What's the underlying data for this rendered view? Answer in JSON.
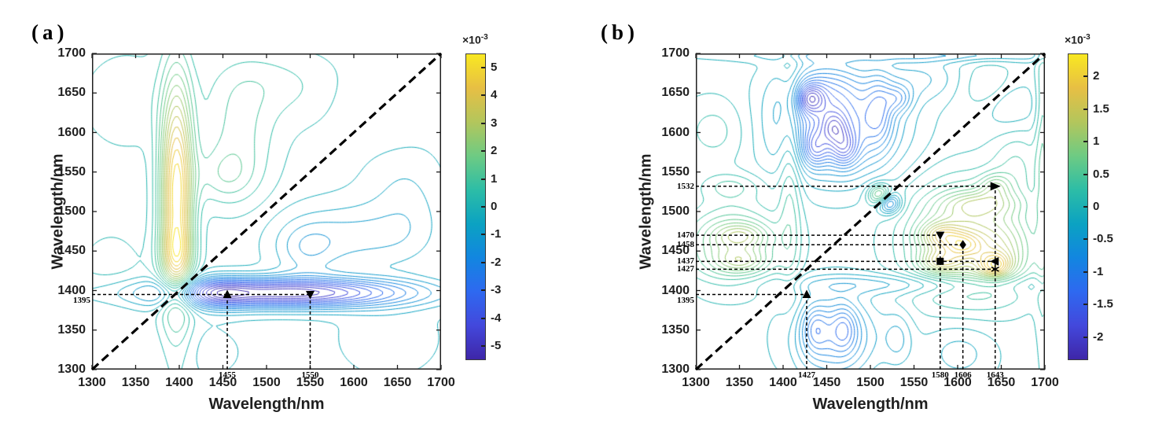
{
  "style": {
    "background": "#ffffff",
    "axis_color": "#1f1f1f",
    "annotation_color": "#000000",
    "parula_stops": [
      "#3e26a8",
      "#4348dc",
      "#2e69f0",
      "#1286e0",
      "#0ba2c2",
      "#2dbda6",
      "#6ecb83",
      "#b3c65c",
      "#e7bf44",
      "#f9e821"
    ]
  },
  "chart_data": [
    {
      "type": "contour",
      "panel_label": "(a)",
      "xlabel": "Wavelength/nm",
      "ylabel": "Wavelength/nm",
      "xlim": [
        1300,
        1700
      ],
      "ylim": [
        1300,
        1700
      ],
      "x_ticks": [
        "1300",
        "1350",
        "1400",
        "1450",
        "1500",
        "1550",
        "1600",
        "1650",
        "1700"
      ],
      "y_ticks": [
        "1300",
        "1350",
        "1400",
        "1450",
        "1500",
        "1550",
        "1600",
        "1650",
        "1700"
      ],
      "diagonal_line": true,
      "antisymmetric": true,
      "amplitude_unit": "1e-3",
      "colorbar": {
        "exponent_base": "×10",
        "exponent_power": "-3",
        "ticks": [
          "5",
          "4",
          "3",
          "2",
          "1",
          "0",
          "-1",
          "-2",
          "-3",
          "-4",
          "-5"
        ],
        "vrange": 5.5
      },
      "levels": {
        "offset": 0.2,
        "step": 0.4,
        "count": 14
      },
      "positive_regions": [
        {
          "x": 1395,
          "y_span": [
            1430,
            1700
          ],
          "note": "strong positive column at 1395 nm"
        }
      ],
      "negative_regions": [
        {
          "y": 1395,
          "x_span": [
            1430,
            1700
          ],
          "note": "strong negative row at 1395 nm"
        }
      ],
      "annotations": {
        "h_lines": [
          {
            "y": 1395,
            "x_from": 1300,
            "x_to": 1550,
            "label": "1395",
            "label_dy": 7
          }
        ],
        "v_lines": [
          {
            "x": 1455,
            "y_from": 1300,
            "y_to": 1395,
            "label": "1455"
          },
          {
            "x": 1550,
            "y_from": 1300,
            "y_to": 1395,
            "label": "1550"
          }
        ],
        "markers": [
          {
            "x": 1455,
            "y": 1395,
            "shape": "triangle-up"
          },
          {
            "x": 1550,
            "y": 1395,
            "shape": "triangle-down"
          }
        ]
      },
      "render_terms": [
        {
          "cx": 1397,
          "cy": 1520,
          "sx": 13,
          "sy": 100,
          "a": 5.3
        },
        {
          "cx": 1397,
          "cy": 1448,
          "sx": 13,
          "sy": 22,
          "a": 1.5
        },
        {
          "cx": 1452,
          "cy": 1545,
          "sx": 24,
          "sy": 24,
          "a": 0.9
        },
        {
          "cx": 1468,
          "cy": 1598,
          "sx": 30,
          "sy": 55,
          "a": 1.1
        },
        {
          "cx": 1340,
          "cy": 1640,
          "sx": 38,
          "sy": 45,
          "a": 0.45
        },
        {
          "cx": 1322,
          "cy": 1425,
          "sx": 30,
          "sy": 40,
          "a": 0.35
        },
        {
          "cx": 1500,
          "cy": 1665,
          "sx": 45,
          "sy": 28,
          "a": 0.5
        },
        {
          "cx": 1560,
          "cy": 1645,
          "sx": 45,
          "sy": 35,
          "a": 0.35
        },
        {
          "cx": 1640,
          "cy": 1605,
          "sx": 30,
          "sy": 35,
          "a": 0.3
        }
      ]
    },
    {
      "type": "contour",
      "panel_label": "(b)",
      "xlabel": "Wavelength/nm",
      "ylabel": "Wavelength/nm",
      "xlim": [
        1300,
        1700
      ],
      "ylim": [
        1300,
        1700
      ],
      "x_ticks": [
        "1300",
        "1350",
        "1400",
        "1450",
        "1500",
        "1550",
        "1600",
        "1650",
        "1700"
      ],
      "y_ticks": [
        "1300",
        "1350",
        "1400",
        "1450",
        "1500",
        "1550",
        "1600",
        "1650",
        "1700"
      ],
      "diagonal_line": true,
      "antisymmetric": true,
      "amplitude_unit": "1e-3",
      "colorbar": {
        "exponent_base": "×10",
        "exponent_power": "-3",
        "ticks": [
          "2",
          "1.5",
          "1",
          "0.5",
          "0",
          "-0.5",
          "-1",
          "-1.5",
          "-2"
        ],
        "vrange": 2.35
      },
      "levels": {
        "offset": 0.075,
        "step": 0.15,
        "count": 15
      },
      "positive_regions": [
        {
          "x_span": [
            1540,
            1700
          ],
          "y_span": [
            1410,
            1545
          ],
          "note": "positive cross-peak cluster"
        },
        {
          "x_span": [
            1300,
            1395
          ],
          "y_span": [
            1415,
            1545
          ],
          "note": "positive cluster at left edge"
        }
      ],
      "negative_regions": [
        {
          "x_span": [
            1400,
            1530
          ],
          "y_span": [
            1545,
            1700
          ],
          "note": "negative cross-peak cluster"
        },
        {
          "x_span": [
            1400,
            1530
          ],
          "y_span": [
            1300,
            1395
          ],
          "note": "negative cluster at bottom"
        }
      ],
      "annotations": {
        "h_lines": [
          {
            "y": 1532,
            "x_from": 1300,
            "x_to": 1643,
            "label": "1532"
          },
          {
            "y": 1470,
            "x_from": 1300,
            "x_to": 1580,
            "label": "1470"
          },
          {
            "y": 1458,
            "x_from": 1300,
            "x_to": 1606,
            "label": "1458"
          },
          {
            "y": 1437,
            "x_from": 1300,
            "x_to": 1643,
            "label": "1437"
          },
          {
            "y": 1427,
            "x_from": 1300,
            "x_to": 1643,
            "label": "1427"
          },
          {
            "y": 1395,
            "x_from": 1300,
            "x_to": 1427,
            "label": "1395",
            "label_dy": 7
          }
        ],
        "v_lines": [
          {
            "x": 1427,
            "y_from": 1300,
            "y_to": 1395,
            "label": "1427"
          },
          {
            "x": 1580,
            "y_from": 1300,
            "y_to": 1470,
            "label": "1580"
          },
          {
            "x": 1606,
            "y_from": 1300,
            "y_to": 1458,
            "label": "1606"
          },
          {
            "x": 1643,
            "y_from": 1300,
            "y_to": 1532,
            "label": "1643"
          }
        ],
        "markers": [
          {
            "x": 1427,
            "y": 1395,
            "shape": "triangle-up"
          },
          {
            "x": 1580,
            "y": 1470,
            "shape": "triangle-down"
          },
          {
            "x": 1606,
            "y": 1458,
            "shape": "diamond"
          },
          {
            "x": 1580,
            "y": 1437,
            "shape": "square"
          },
          {
            "x": 1643,
            "y": 1437,
            "shape": "triangle-left"
          },
          {
            "x": 1643,
            "y": 1427,
            "shape": "asterisk"
          },
          {
            "x": 1643,
            "y": 1532,
            "shape": "arrow-right"
          }
        ]
      },
      "render_terms": [
        {
          "cx": 1408,
          "cy": 1555,
          "sx": 9,
          "sy": 115,
          "a": 0.45
        },
        {
          "cx": 1462,
          "cy": 1610,
          "sx": 48,
          "sy": 45,
          "a": -1.3
        },
        {
          "cx": 1470,
          "cy": 1580,
          "sx": 11,
          "sy": 16,
          "a": -0.8
        },
        {
          "cx": 1458,
          "cy": 1606,
          "sx": 10,
          "sy": 14,
          "a": -0.7
        },
        {
          "cx": 1437,
          "cy": 1580,
          "sx": 10,
          "sy": 16,
          "a": -0.75
        },
        {
          "cx": 1437,
          "cy": 1643,
          "sx": 9,
          "sy": 13,
          "a": -0.6
        },
        {
          "cx": 1427,
          "cy": 1643,
          "sx": 8,
          "sy": 12,
          "a": -0.6
        },
        {
          "cx": 1510,
          "cy": 1628,
          "sx": 11,
          "sy": 30,
          "a": -0.6
        },
        {
          "cx": 1532,
          "cy": 1643,
          "sx": 11,
          "sy": 12,
          "a": -0.55
        },
        {
          "cx": 1445,
          "cy": 1655,
          "sx": 30,
          "sy": 25,
          "a": -0.5
        },
        {
          "cx": 1342,
          "cy": 1458,
          "sx": 38,
          "sy": 34,
          "a": 0.95
        },
        {
          "cx": 1352,
          "cy": 1470,
          "sx": 20,
          "sy": 10,
          "a": 0.5
        },
        {
          "cx": 1352,
          "cy": 1437,
          "sx": 20,
          "sy": 10,
          "a": 0.5
        },
        {
          "cx": 1340,
          "cy": 1532,
          "sx": 26,
          "sy": 12,
          "a": 0.35
        },
        {
          "cx": 1521,
          "cy": 1511,
          "sx": 9,
          "sy": 9,
          "a": -1.1
        },
        {
          "cx": 1560,
          "cy": 1668,
          "sx": 35,
          "sy": 20,
          "a": -0.35
        },
        {
          "cx": 1322,
          "cy": 1602,
          "sx": 28,
          "sy": 30,
          "a": 0.3
        },
        {
          "cx": 1698,
          "cy": 1560,
          "sx": 6,
          "sy": 150,
          "a": 0.45
        },
        {
          "cx": 1660,
          "cy": 1640,
          "sx": 22,
          "sy": 26,
          "a": -0.35
        }
      ]
    }
  ]
}
